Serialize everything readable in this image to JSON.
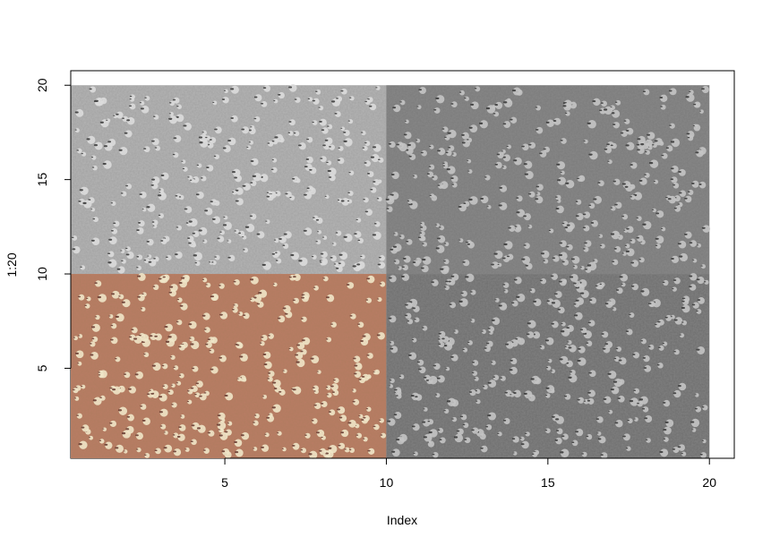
{
  "chart_data": {
    "type": "image",
    "xlabel": "Index",
    "ylabel": "1:20",
    "x_ticks": [
      5,
      10,
      15,
      20
    ],
    "y_ticks": [
      5,
      10,
      15,
      20
    ],
    "xlim": [
      0.23,
      20.77
    ],
    "ylim": [
      0.23,
      20.77
    ],
    "grid": false,
    "image_panels": [
      {
        "id": "grayscale-top-left",
        "xmin": 0.23,
        "xmax": 10,
        "ymin": 10,
        "ymax": 20,
        "tone": "light-gray",
        "base_color": "#a2a2a2"
      },
      {
        "id": "grayscale-top-right",
        "xmin": 10,
        "xmax": 20,
        "ymin": 10,
        "ymax": 20,
        "tone": "dark-gray",
        "base_color": "#7b7b7b"
      },
      {
        "id": "color-bottom-left",
        "xmin": 0.23,
        "xmax": 10,
        "ymin": 0.23,
        "ymax": 10,
        "tone": "rgb-red",
        "base_color": "#b07c5f"
      },
      {
        "id": "grayscale-bottom-right",
        "xmin": 10,
        "xmax": 20,
        "ymin": 0.23,
        "ymax": 10,
        "tone": "dark-gray",
        "base_color": "#6e6e6e"
      }
    ]
  }
}
